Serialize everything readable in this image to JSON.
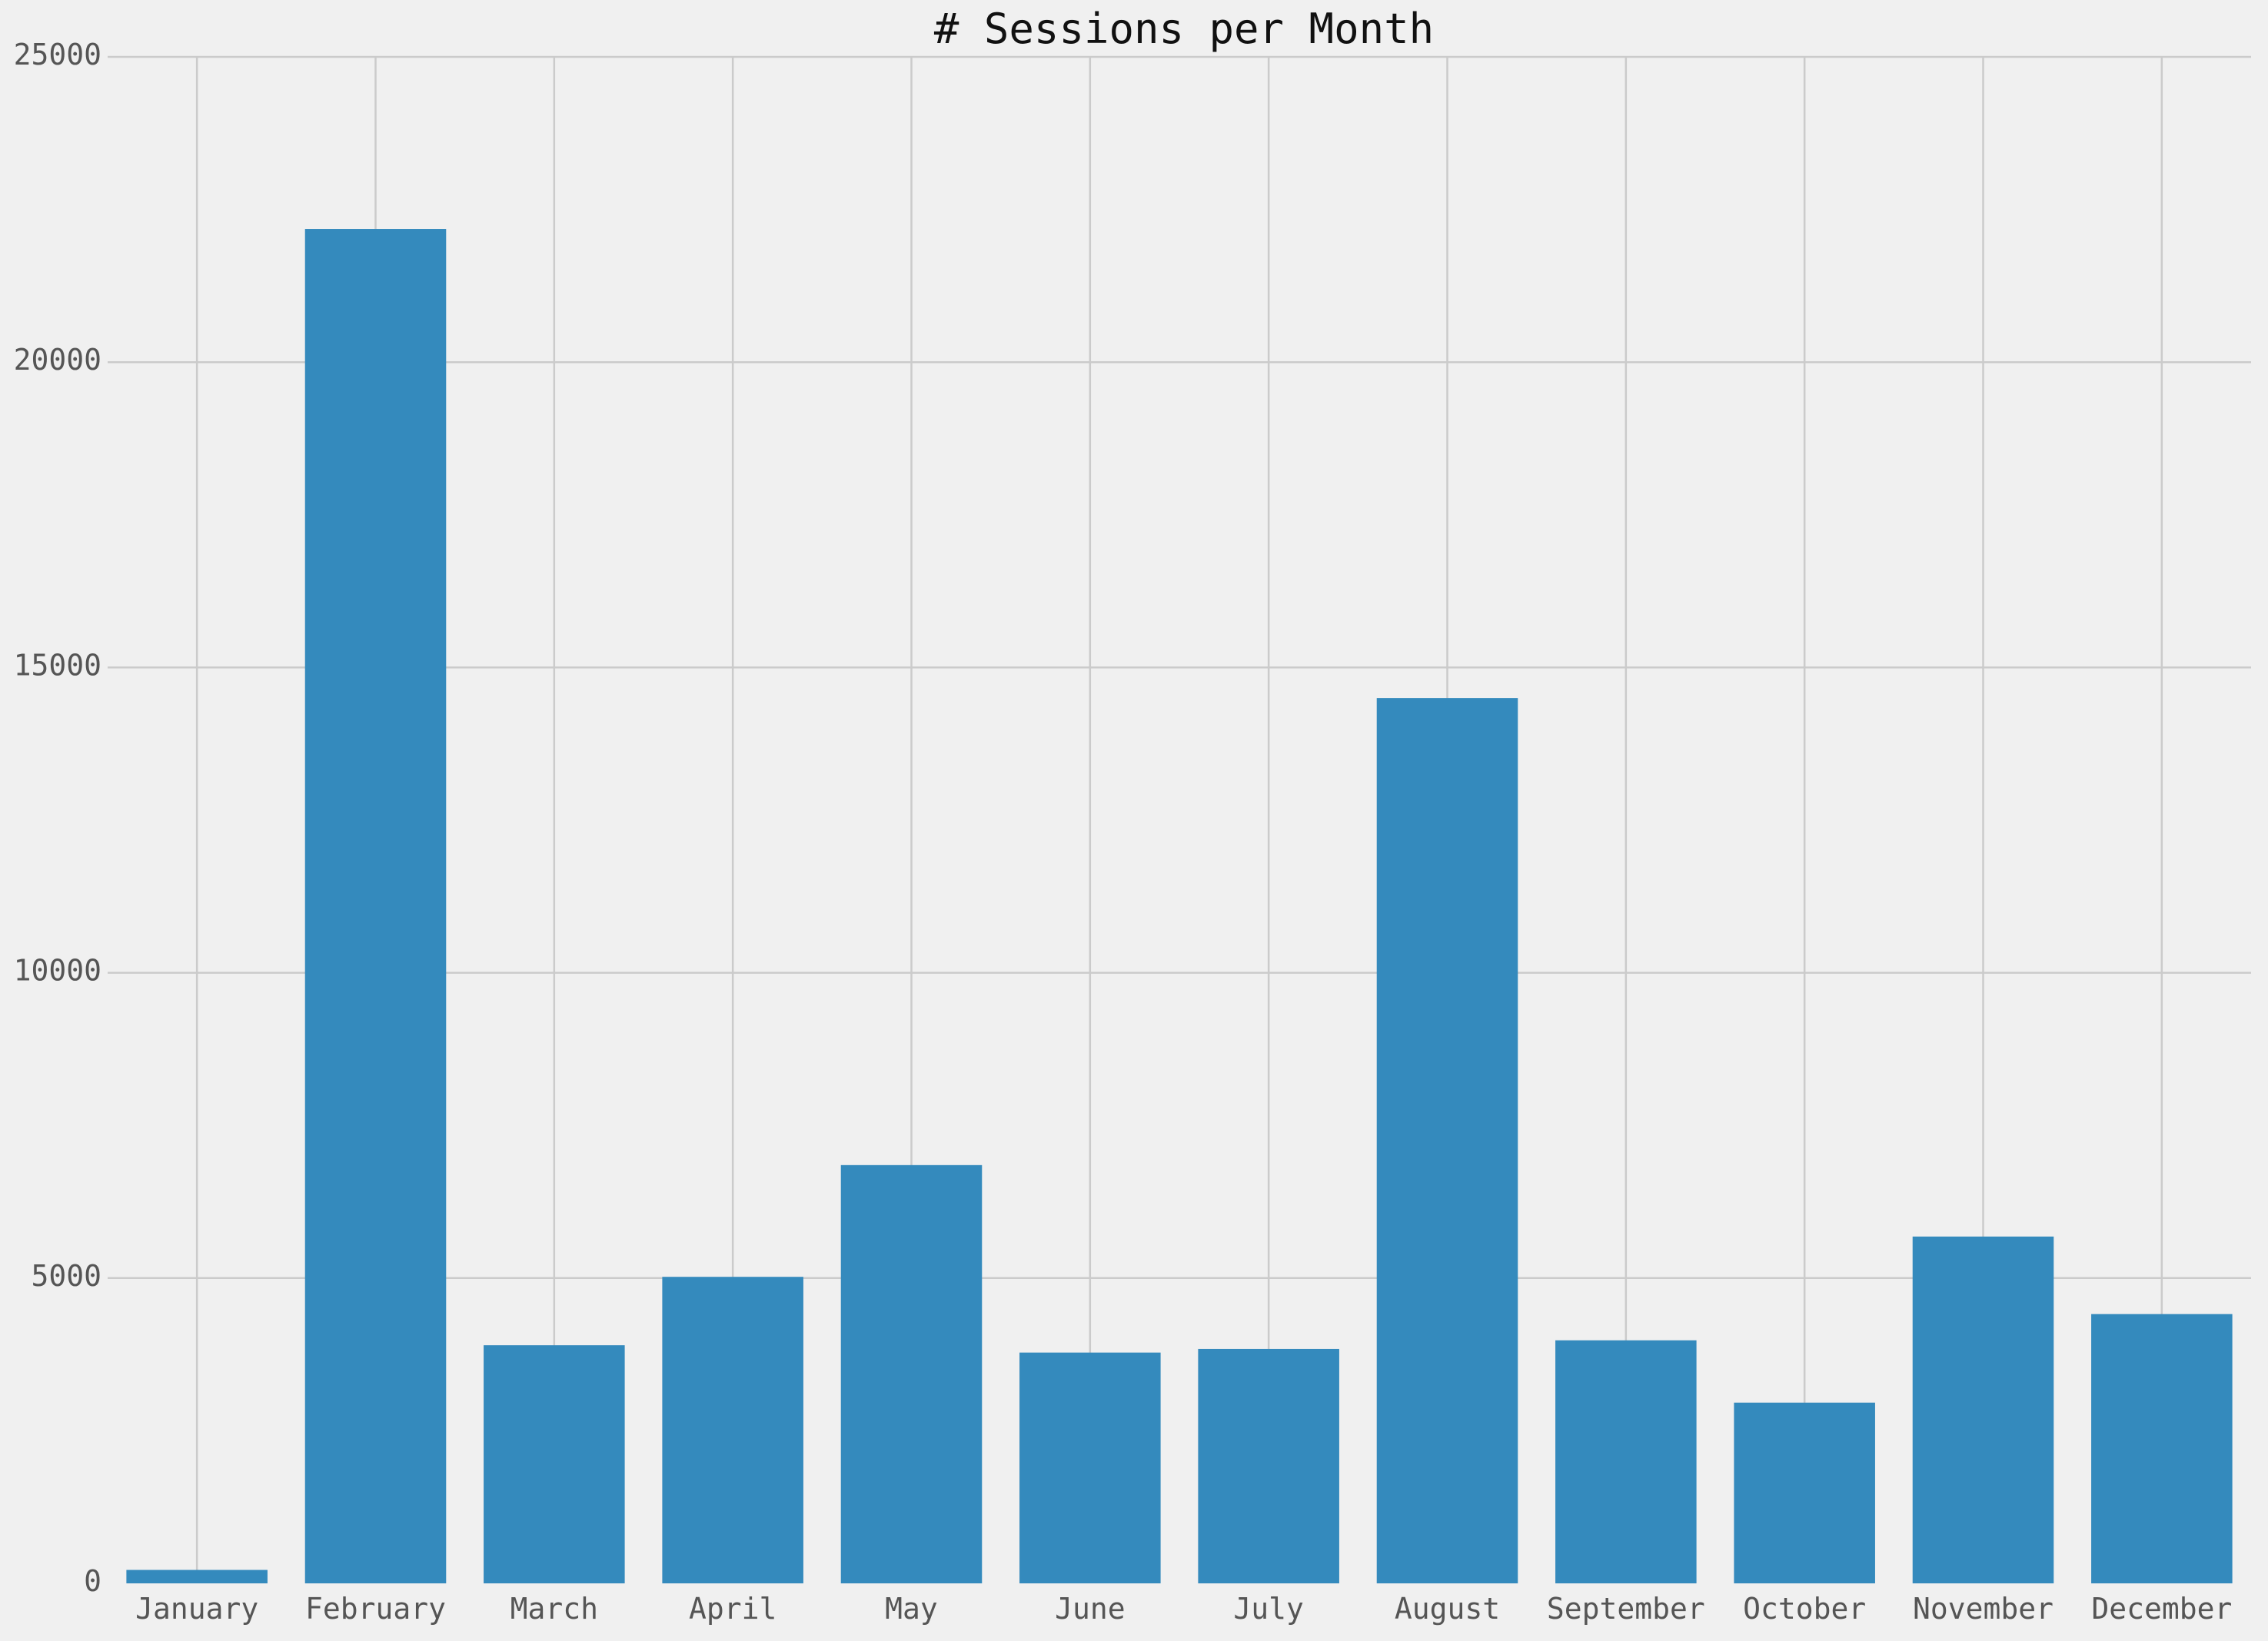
{
  "chart_data": {
    "type": "bar",
    "title": "# Sessions per Month",
    "xlabel": "",
    "ylabel": "",
    "categories": [
      "January",
      "February",
      "March",
      "April",
      "May",
      "June",
      "July",
      "August",
      "September",
      "October",
      "November",
      "December"
    ],
    "values": [
      220,
      22180,
      3900,
      5020,
      6850,
      3780,
      3840,
      14500,
      3980,
      2960,
      5680,
      4410
    ],
    "ylim": [
      0,
      25000
    ],
    "yticks": [
      "0",
      "5000",
      "10000",
      "15000",
      "20000",
      "25000"
    ],
    "grid": true,
    "legend": "none",
    "colors": {
      "bar": "#348abd",
      "background": "#f0f0f0",
      "grid": "#cbcbcb",
      "tick_text": "#555555",
      "title_text": "#111111"
    }
  }
}
